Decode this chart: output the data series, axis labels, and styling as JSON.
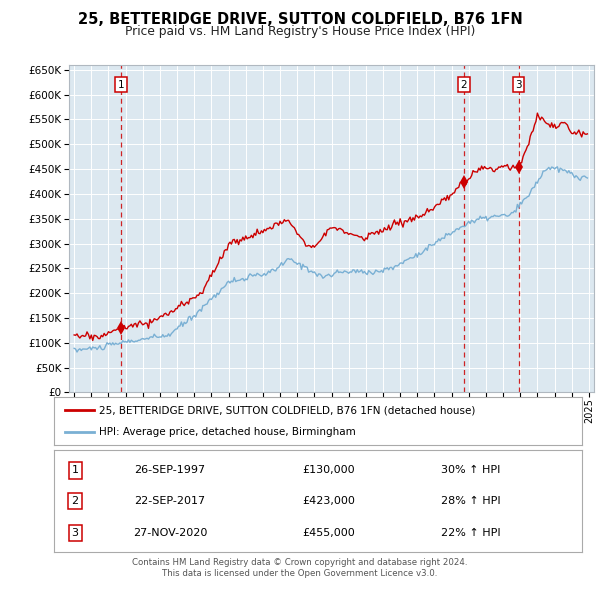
{
  "title": "25, BETTERIDGE DRIVE, SUTTON COLDFIELD, B76 1FN",
  "subtitle": "Price paid vs. HM Land Registry's House Price Index (HPI)",
  "bg_color": "#dce8f0",
  "grid_color": "#ffffff",
  "sale_dates_float": [
    1997.73,
    2017.72,
    2020.9
  ],
  "sale_prices": [
    130000,
    423000,
    455000
  ],
  "sale_labels": [
    "1",
    "2",
    "3"
  ],
  "dashed_line_color": "#cc0000",
  "sale_marker_color": "#cc0000",
  "red_line_color": "#cc0000",
  "blue_line_color": "#7ab0d4",
  "legend_entries": [
    "25, BETTERIDGE DRIVE, SUTTON COLDFIELD, B76 1FN (detached house)",
    "HPI: Average price, detached house, Birmingham"
  ],
  "table_rows": [
    {
      "label": "1",
      "date": "26-SEP-1997",
      "price": "£130,000",
      "hpi": "30% ↑ HPI"
    },
    {
      "label": "2",
      "date": "22-SEP-2017",
      "price": "£423,000",
      "hpi": "28% ↑ HPI"
    },
    {
      "label": "3",
      "date": "27-NOV-2020",
      "price": "£455,000",
      "hpi": "22% ↑ HPI"
    }
  ],
  "footer": [
    "Contains HM Land Registry data © Crown copyright and database right 2024.",
    "This data is licensed under the Open Government Licence v3.0."
  ],
  "ylim": [
    0,
    660000
  ],
  "yticks": [
    0,
    50000,
    100000,
    150000,
    200000,
    250000,
    300000,
    350000,
    400000,
    450000,
    500000,
    550000,
    600000,
    650000
  ],
  "year_start": 1995,
  "year_end": 2025,
  "hpi_keypoints": [
    [
      1995.0,
      85000
    ],
    [
      1996.5,
      90000
    ],
    [
      1997.75,
      100000
    ],
    [
      1999.0,
      107000
    ],
    [
      2000.5,
      115000
    ],
    [
      2002.0,
      155000
    ],
    [
      2004.0,
      222000
    ],
    [
      2006.5,
      242000
    ],
    [
      2007.5,
      268000
    ],
    [
      2008.5,
      252000
    ],
    [
      2009.5,
      232000
    ],
    [
      2010.5,
      242000
    ],
    [
      2011.5,
      244000
    ],
    [
      2012.5,
      242000
    ],
    [
      2013.5,
      250000
    ],
    [
      2015.0,
      278000
    ],
    [
      2017.0,
      322000
    ],
    [
      2018.0,
      342000
    ],
    [
      2019.0,
      352000
    ],
    [
      2020.5,
      358000
    ],
    [
      2021.5,
      398000
    ],
    [
      2022.5,
      452000
    ],
    [
      2023.5,
      448000
    ],
    [
      2024.5,
      432000
    ]
  ],
  "red_keypoints": [
    [
      1995.0,
      115000
    ],
    [
      1996.5,
      112000
    ],
    [
      1997.73,
      130000
    ],
    [
      1998.5,
      137000
    ],
    [
      1999.5,
      142000
    ],
    [
      2001.0,
      168000
    ],
    [
      2002.5,
      205000
    ],
    [
      2004.0,
      298000
    ],
    [
      2005.5,
      318000
    ],
    [
      2006.5,
      332000
    ],
    [
      2007.5,
      348000
    ],
    [
      2008.5,
      298000
    ],
    [
      2009.0,
      298000
    ],
    [
      2010.0,
      332000
    ],
    [
      2011.0,
      320000
    ],
    [
      2012.0,
      312000
    ],
    [
      2013.0,
      328000
    ],
    [
      2014.0,
      342000
    ],
    [
      2015.5,
      358000
    ],
    [
      2017.0,
      398000
    ],
    [
      2017.72,
      423000
    ],
    [
      2018.5,
      448000
    ],
    [
      2019.5,
      452000
    ],
    [
      2020.0,
      455000
    ],
    [
      2020.9,
      455000
    ],
    [
      2021.5,
      502000
    ],
    [
      2022.0,
      558000
    ],
    [
      2023.0,
      532000
    ],
    [
      2023.5,
      542000
    ],
    [
      2024.0,
      528000
    ],
    [
      2024.5,
      522000
    ]
  ]
}
